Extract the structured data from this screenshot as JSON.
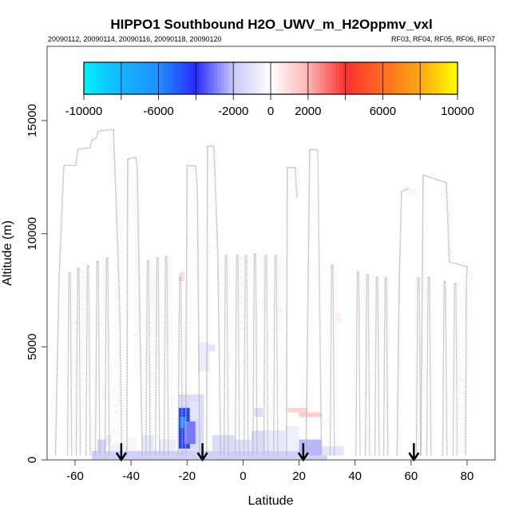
{
  "chart_data": {
    "type": "heatmap",
    "title": "HIPPO1 Southbound H2O_UWV_m_H2Oppmv_vxl",
    "subtitle_left": "20090112, 20090114, 20090116, 20090118, 20090120",
    "subtitle_right": "RF03, RF04, RF05, RF06, RF07",
    "xlabel": "Latitude",
    "ylabel": "Altitude (m)",
    "xlim": [
      -70,
      90
    ],
    "ylim": [
      0,
      18300
    ],
    "xticks": [
      -60,
      -40,
      -20,
      0,
      20,
      40,
      60,
      80
    ],
    "xtick_labels": [
      "-60",
      "-40",
      "-20",
      "0",
      "20",
      "40",
      "60",
      "80"
    ],
    "yticks": [
      0,
      5000,
      10000,
      15000
    ],
    "ytick_labels": [
      "0",
      "5000",
      "10000",
      "15000"
    ],
    "colorbar": {
      "range": [
        -10000,
        10000
      ],
      "breaks": [
        -10000,
        -8000,
        -6000,
        -4000,
        -2000,
        0,
        2000,
        4000,
        6000,
        8000,
        10000
      ],
      "ticks": [
        -10000,
        -6000,
        -2000,
        0,
        2000,
        6000,
        10000
      ],
      "tick_labels": [
        "-10000",
        "-6000",
        "-2000",
        "0",
        "2000",
        "6000",
        "10000"
      ],
      "stops": [
        [
          -10000,
          "#00f0ff"
        ],
        [
          -8000,
          "#14b4ff"
        ],
        [
          -6000,
          "#1c90ff"
        ],
        [
          -4000,
          "#2a2aff"
        ],
        [
          -2000,
          "#c8c8f8"
        ],
        [
          0,
          "#ffffff"
        ],
        [
          2000,
          "#ffb4b4"
        ],
        [
          4000,
          "#ff3030"
        ],
        [
          6000,
          "#ff6a20"
        ],
        [
          8000,
          "#ffa810"
        ],
        [
          10000,
          "#ffff00"
        ]
      ]
    },
    "cells": [
      [
        -54,
        -48,
        0,
        400,
        -1800
      ],
      [
        -52,
        -49,
        400,
        900,
        -1600
      ],
      [
        -49,
        -47,
        600,
        1100,
        -700
      ],
      [
        -48,
        30,
        0,
        400,
        -1700
      ],
      [
        -48,
        -40,
        400,
        700,
        -500
      ],
      [
        -41,
        -38,
        400,
        1000,
        300
      ],
      [
        -36,
        -32,
        400,
        1100,
        -900
      ],
      [
        -30,
        -24,
        400,
        900,
        -700
      ],
      [
        -23,
        -14,
        400,
        2900,
        -1300
      ],
      [
        -23,
        -19,
        500,
        2300,
        -4500
      ],
      [
        -22.5,
        -20.5,
        1400,
        1900,
        -6500
      ],
      [
        -21,
        -17,
        700,
        1700,
        -3000
      ],
      [
        -19,
        -15,
        1800,
        2600,
        -1000
      ],
      [
        -16,
        -12,
        3900,
        5200,
        -700
      ],
      [
        -13,
        -10,
        4800,
        5100,
        -1000
      ],
      [
        -11,
        -3,
        400,
        1100,
        -1300
      ],
      [
        -3,
        3,
        400,
        900,
        -1100
      ],
      [
        3,
        8,
        400,
        1300,
        -1300
      ],
      [
        4,
        7,
        1900,
        2300,
        -1200
      ],
      [
        8,
        15,
        400,
        1300,
        -800
      ],
      [
        15,
        20,
        400,
        1500,
        -600
      ],
      [
        20,
        28,
        200,
        900,
        -2200
      ],
      [
        28,
        36,
        200,
        600,
        -1000
      ],
      [
        16,
        23,
        2100,
        2300,
        1200
      ],
      [
        20,
        28,
        1900,
        2100,
        1400
      ],
      [
        -23,
        -21,
        7900,
        8300,
        900
      ],
      [
        33,
        35,
        6100,
        6500,
        400
      ],
      [
        12,
        14,
        6500,
        6700,
        300
      ],
      [
        58,
        62,
        11700,
        12000,
        -300
      ]
    ],
    "track": {
      "high_legs": [
        [
          [
            -67,
            200
          ],
          [
            -65.7,
            8080
          ],
          [
            -64,
            13020
          ],
          [
            -59.7,
            13020
          ],
          [
            -59.1,
            13730
          ],
          [
            -54.6,
            13800
          ],
          [
            -54,
            14150
          ],
          [
            -52.6,
            14200
          ],
          [
            -51.7,
            14540
          ],
          [
            -46.3,
            14610
          ],
          [
            -44.6,
            8860
          ],
          [
            -44,
            6280
          ],
          [
            -43.6,
            3300
          ],
          [
            -43.4,
            200
          ]
        ],
        [
          [
            -41.5,
            200
          ],
          [
            -41.2,
            13310
          ],
          [
            -38.3,
            13380
          ],
          [
            -37.8,
            12900
          ],
          [
            -36,
            200
          ]
        ],
        [
          [
            -20.5,
            200
          ],
          [
            -20,
            13000
          ],
          [
            -16.9,
            13000
          ],
          [
            -16.3,
            11800
          ],
          [
            -15.5,
            200
          ]
        ],
        [
          [
            -13,
            200
          ],
          [
            -12.7,
            13870
          ],
          [
            -10.4,
            13870
          ],
          [
            -9,
            9040
          ],
          [
            -8,
            200
          ]
        ],
        [
          [
            15.5,
            200
          ],
          [
            15.8,
            12920
          ],
          [
            18.6,
            12920
          ],
          [
            19.3,
            11580
          ]
        ],
        [
          [
            22.5,
            200
          ],
          [
            23.8,
            13730
          ],
          [
            26.7,
            13700
          ],
          [
            28,
            200
          ]
        ],
        [
          [
            55,
            200
          ],
          [
            55.8,
            8050
          ],
          [
            56.6,
            11860
          ],
          [
            59.2,
            12000
          ]
        ],
        [
          [
            63.5,
            200
          ],
          [
            64.3,
            12600
          ],
          [
            72.6,
            12250
          ],
          [
            73.7,
            8750
          ],
          [
            80,
            8540
          ],
          [
            79.7,
            7700
          ],
          [
            79.5,
            200
          ]
        ]
      ],
      "profiles": [
        [
          -62,
          8260
        ],
        [
          -58.9,
          8470
        ],
        [
          -55.4,
          8590
        ],
        [
          -52,
          8780
        ],
        [
          -48.6,
          8930
        ],
        [
          -34,
          8790
        ],
        [
          -30.6,
          8920
        ],
        [
          -27.5,
          9000
        ],
        [
          -22.5,
          8100
        ],
        [
          -6.1,
          9040
        ],
        [
          -2.1,
          9040
        ],
        [
          1,
          9040
        ],
        [
          4.2,
          9100
        ],
        [
          8.1,
          9040
        ],
        [
          11.6,
          9040
        ],
        [
          31.8,
          8610
        ],
        [
          41,
          8320
        ],
        [
          44.4,
          8190
        ],
        [
          47.8,
          8090
        ],
        [
          50.9,
          8050
        ],
        [
          62.6,
          8050
        ],
        [
          66.3,
          8090
        ],
        [
          72,
          7900
        ],
        [
          75.7,
          7800
        ]
      ]
    },
    "arrows_lat": [
      -43.5,
      -14.5,
      21.5,
      61
    ]
  }
}
